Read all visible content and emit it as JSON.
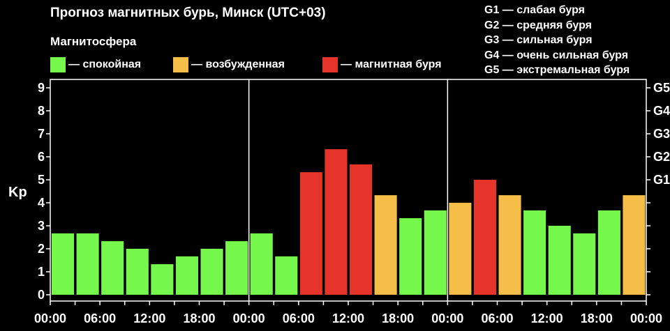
{
  "title": "Прогноз магнитных бурь, Минск (UTC+03)",
  "magnetosphere_label": "Магнитосфера",
  "legend": [
    {
      "label": "— спокойная",
      "color": "#76f74c"
    },
    {
      "label": "— возбужденная",
      "color": "#f4be48"
    },
    {
      "label": "— магнитная буря",
      "color": "#e6342b"
    }
  ],
  "storm_levels": [
    "G1 — слабая буря",
    "G2 — средняя буря",
    "G3 — сильная буря",
    "G4 — очень сильная буря",
    "G5 — экстремальная буря"
  ],
  "chart_data": {
    "type": "bar",
    "ylabel": "Kp",
    "ylim": [
      0,
      9.5
    ],
    "yticks": [
      0,
      1,
      2,
      3,
      4,
      5,
      6,
      7,
      8,
      9
    ],
    "right_ticks": [
      {
        "label": "G1",
        "value": 5
      },
      {
        "label": "G2",
        "value": 6
      },
      {
        "label": "G3",
        "value": 7
      },
      {
        "label": "G4",
        "value": 8
      },
      {
        "label": "G5",
        "value": 9
      }
    ],
    "xtick_labels": [
      "00:00",
      "06:00",
      "12:00",
      "18:00",
      "00:00",
      "06:00",
      "12:00",
      "18:00",
      "00:00",
      "06:00",
      "12:00",
      "18:00",
      "00:00"
    ],
    "values": [
      2.67,
      2.67,
      2.33,
      2.0,
      1.33,
      1.67,
      2.0,
      2.33,
      2.67,
      1.67,
      5.33,
      6.33,
      5.67,
      4.33,
      3.33,
      3.67,
      4.0,
      5.0,
      4.33,
      3.67,
      3.0,
      2.67,
      3.67,
      4.33
    ],
    "levels": [
      "quiet",
      "quiet",
      "quiet",
      "quiet",
      "quiet",
      "quiet",
      "quiet",
      "quiet",
      "quiet",
      "quiet",
      "storm",
      "storm",
      "storm",
      "active",
      "quiet",
      "quiet",
      "active",
      "storm",
      "active",
      "quiet",
      "quiet",
      "quiet",
      "quiet",
      "active"
    ],
    "colors": {
      "quiet": "#76f74c",
      "active": "#f4be48",
      "storm": "#e6342b"
    },
    "day_separators": [
      8,
      16
    ]
  }
}
